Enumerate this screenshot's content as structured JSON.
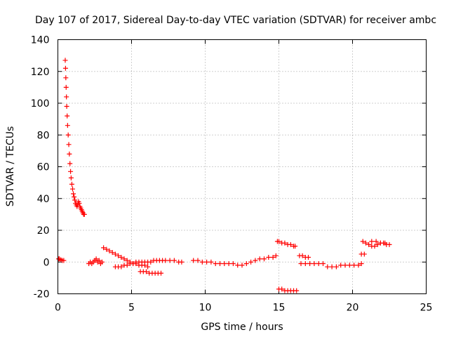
{
  "chart_data": {
    "type": "scatter",
    "title": "Day 107 of 2017, Sidereal Day-to-day VTEC variation (SDTVAR) for receiver ambc",
    "xlabel": "GPS time / hours",
    "ylabel": "SDTVAR / TECUs",
    "xlim": [
      0,
      25
    ],
    "ylim": [
      -20,
      140
    ],
    "x_ticks": [
      0,
      5,
      10,
      15,
      20,
      25
    ],
    "y_ticks": [
      -20,
      0,
      20,
      40,
      60,
      80,
      100,
      120,
      140
    ],
    "x_tick_labels": [
      "0",
      "5",
      "10",
      "15",
      "20",
      "25"
    ],
    "y_tick_labels": [
      "-20",
      "0",
      "20",
      "40",
      "60",
      "80",
      "100",
      "120",
      "140"
    ],
    "grid": true,
    "marker": "plus",
    "color": "#ff0000",
    "series": [
      {
        "name": "SDTVAR",
        "x": [
          0.05,
          0.1,
          0.2,
          0.3,
          0.4,
          0.5,
          0.52,
          0.54,
          0.56,
          0.58,
          0.6,
          0.63,
          0.66,
          0.7,
          0.74,
          0.78,
          0.82,
          0.86,
          0.9,
          0.95,
          1.0,
          1.05,
          1.1,
          1.15,
          1.2,
          1.25,
          1.3,
          1.35,
          1.4,
          1.45,
          1.5,
          1.55,
          1.6,
          1.65,
          1.7,
          1.75,
          1.8,
          2.1,
          2.2,
          2.3,
          2.4,
          2.5,
          2.6,
          2.7,
          2.8,
          2.9,
          3.0,
          3.1,
          3.3,
          3.5,
          3.7,
          3.9,
          4.1,
          4.3,
          4.5,
          4.7,
          4.9,
          5.1,
          5.3,
          5.5,
          5.7,
          5.9,
          6.1,
          3.9,
          4.1,
          4.3,
          4.5,
          4.7,
          4.9,
          5.1,
          5.3,
          5.5,
          5.7,
          5.9,
          6.1,
          6.3,
          6.5,
          6.7,
          6.9,
          7.1,
          5.6,
          5.8,
          6.0,
          6.2,
          6.4,
          6.6,
          6.8,
          7.0,
          7.3,
          7.6,
          7.9,
          8.2,
          8.4,
          9.2,
          9.5,
          9.8,
          10.1,
          10.4,
          10.7,
          11.0,
          11.3,
          11.6,
          11.9,
          12.2,
          12.5,
          12.8,
          13.1,
          13.4,
          13.7,
          14.0,
          14.3,
          14.6,
          14.8,
          14.9,
          15.0,
          15.2,
          15.4,
          15.6,
          15.8,
          16.0,
          16.1,
          15.0,
          15.2,
          15.4,
          15.6,
          15.8,
          16.0,
          16.2,
          16.4,
          16.6,
          16.8,
          17.0,
          16.5,
          16.8,
          17.1,
          17.4,
          17.7,
          18.0,
          18.3,
          18.6,
          18.9,
          19.2,
          19.5,
          19.8,
          20.1,
          20.4,
          20.6,
          20.6,
          20.8,
          20.7,
          20.9,
          21.1,
          21.3,
          21.5,
          21.7,
          21.9,
          22.1,
          22.3,
          22.5,
          21.3,
          21.6,
          21.9,
          22.2
        ],
        "y": [
          2,
          2,
          1.5,
          1,
          1,
          127,
          122,
          116,
          110,
          104,
          98,
          92,
          86,
          80,
          74,
          68,
          62,
          57,
          53,
          49,
          46,
          43,
          41,
          39,
          37,
          36,
          35,
          36,
          38,
          37,
          35,
          34,
          33,
          32,
          31,
          30,
          30,
          -1,
          0,
          -1,
          0,
          1,
          2,
          0,
          1,
          -1,
          0,
          9,
          8,
          7,
          6,
          5,
          4,
          3,
          2,
          1,
          0,
          -1,
          -1,
          -2,
          -2,
          -2,
          -3,
          -3,
          -3,
          -3,
          -2,
          -2,
          -1,
          -1,
          0,
          0,
          0,
          0,
          0,
          0,
          1,
          1,
          1,
          1,
          -6,
          -6,
          -6,
          -7,
          -7,
          -7,
          -7,
          -7,
          1,
          1,
          1,
          0,
          0,
          1,
          1,
          0,
          0,
          0,
          -1,
          -1,
          -1,
          -1,
          -1,
          -2,
          -2,
          -1,
          0,
          1,
          2,
          2,
          3,
          3,
          4,
          13,
          13,
          12,
          12,
          11,
          11,
          10,
          10,
          -17,
          -17,
          -18,
          -18,
          -18,
          -18,
          -18,
          4,
          4,
          3,
          3,
          -1,
          -1,
          -1,
          -1,
          -1,
          -1,
          -3,
          -3,
          -3,
          -2,
          -2,
          -2,
          -2,
          -2,
          -1,
          5,
          5,
          13,
          12,
          11,
          10,
          10,
          11,
          12,
          12,
          11,
          11,
          13,
          13,
          12,
          12
        ]
      }
    ]
  }
}
